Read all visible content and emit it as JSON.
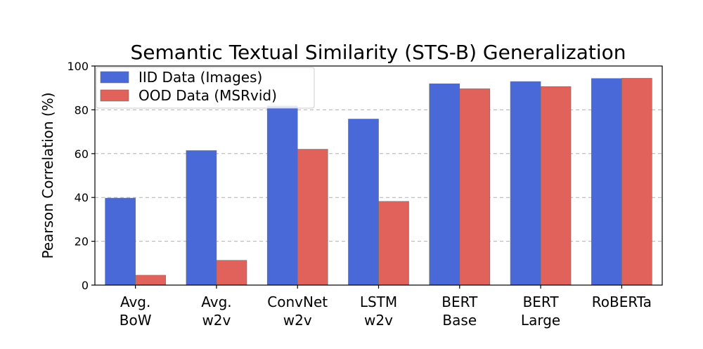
{
  "chart_data": {
    "type": "bar",
    "title": "Semantic Textual Similarity (STS-B) Generalization",
    "xlabel": "",
    "ylabel": "Pearson Correlation (%)",
    "ylim": [
      0,
      100
    ],
    "yticks": [
      0,
      20,
      40,
      60,
      80,
      100
    ],
    "grid": "horizontal-dashed",
    "legend_position": "top-left",
    "categories": [
      [
        "Avg.",
        "BoW"
      ],
      [
        "Avg.",
        "w2v"
      ],
      [
        "ConvNet",
        "w2v"
      ],
      [
        "LSTM",
        "w2v"
      ],
      [
        "BERT",
        "Base"
      ],
      [
        "BERT",
        "Large"
      ],
      [
        "RoBERTa"
      ]
    ],
    "series": [
      {
        "name": "IID Data (Images)",
        "color": "#4a69d9",
        "values": [
          39.7,
          61.4,
          81.8,
          75.8,
          91.9,
          92.9,
          94.3
        ]
      },
      {
        "name": "OOD Data (MSRvid)",
        "color": "#e0625b",
        "values": [
          4.5,
          11.3,
          62.0,
          38.2,
          89.6,
          90.6,
          94.4
        ]
      }
    ]
  }
}
